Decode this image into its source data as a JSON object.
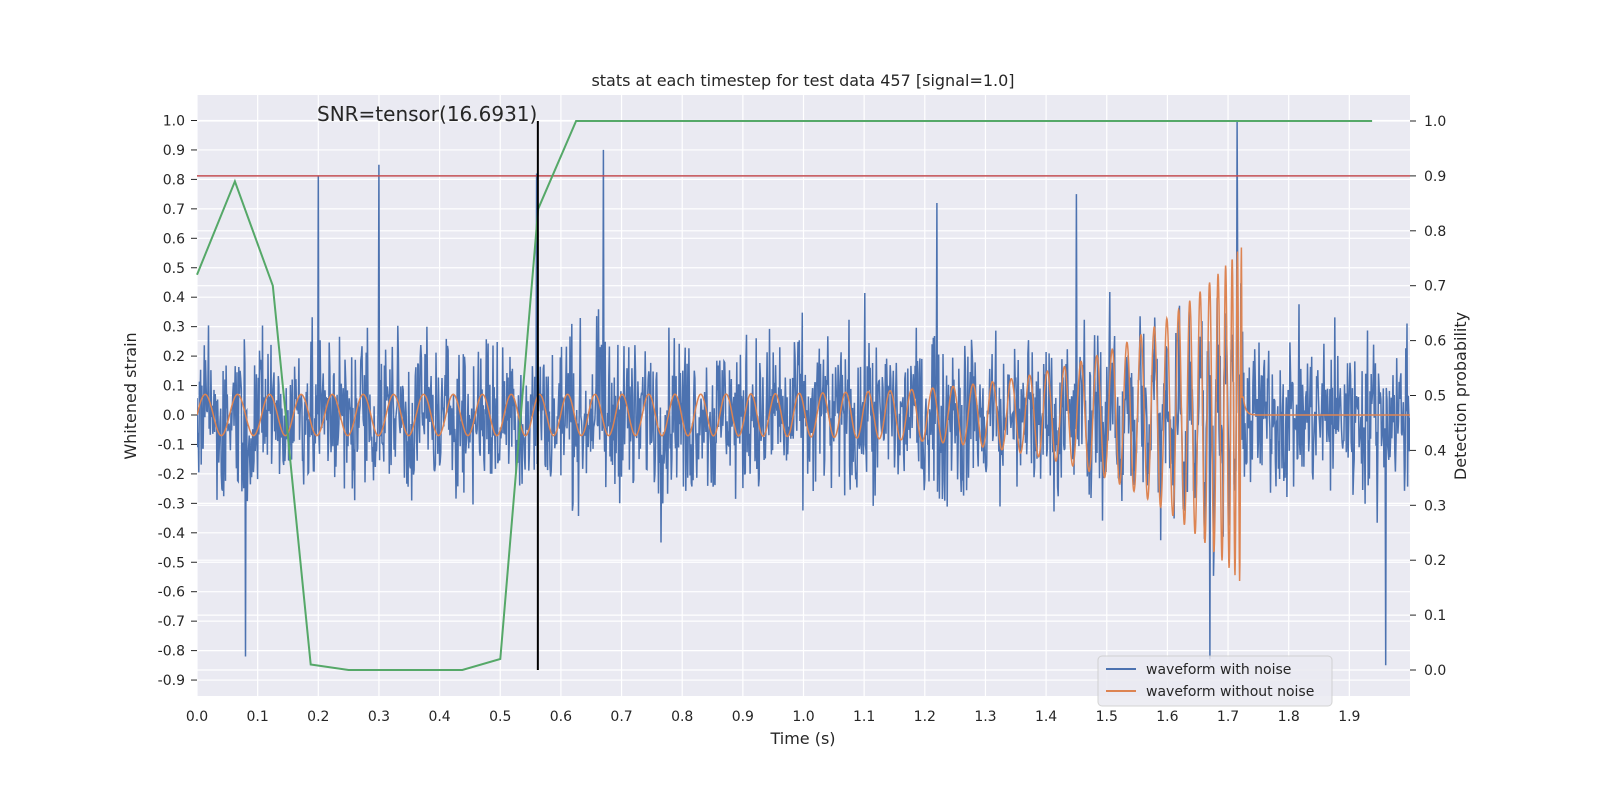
{
  "chart_data": {
    "type": "line",
    "title": "stats at each timestep for test data 457 [signal=1.0]",
    "xlabel": "Time (s)",
    "ylabel": "Whitened strain",
    "y2label": "Detection probability",
    "xlim": [
      0.0,
      2.0
    ],
    "ylim": [
      -0.95,
      1.09
    ],
    "y2lim": [
      -0.045,
      1.045
    ],
    "xticks": [
      "0.0",
      "0.1",
      "0.2",
      "0.3",
      "0.4",
      "0.5",
      "0.6",
      "0.7",
      "0.8",
      "0.9",
      "1.0",
      "1.1",
      "1.2",
      "1.3",
      "1.4",
      "1.5",
      "1.6",
      "1.7",
      "1.8",
      "1.9"
    ],
    "yticks": [
      "1.0",
      "0.9",
      "0.8",
      "0.7",
      "0.6",
      "0.5",
      "0.4",
      "0.3",
      "0.2",
      "0.1",
      "0.0",
      "-0.1",
      "-0.2",
      "-0.3",
      "-0.4",
      "-0.5",
      "-0.6",
      "-0.7",
      "-0.8",
      "-0.9"
    ],
    "y2ticks": [
      "1.0",
      "0.9",
      "0.8",
      "0.7",
      "0.6",
      "0.5",
      "0.4",
      "0.3",
      "0.2",
      "0.1",
      "0.0"
    ],
    "grid": true,
    "legend_position": "lower-right",
    "annotation": {
      "text": "SNR=tensor(16.6931)",
      "x": 0.2,
      "y": 1.0
    },
    "threshold_line": {
      "y2": 0.9,
      "color": "#c44e52"
    },
    "marker_line": {
      "x": 0.562,
      "y2_from": 0.0,
      "y2_to": 1.0,
      "color": "#000000"
    },
    "series": [
      {
        "name": "waveform with noise",
        "color": "#4c72b0",
        "description_only": false,
        "noise_amplitude": 0.45,
        "spikes": [
          [
            0.08,
            -0.82
          ],
          [
            0.2,
            0.81
          ],
          [
            0.3,
            0.85
          ],
          [
            0.56,
            0.82
          ],
          [
            0.67,
            0.9
          ],
          [
            1.22,
            0.72
          ],
          [
            1.45,
            0.75
          ],
          [
            1.67,
            -0.83
          ],
          [
            1.715,
            1.0
          ],
          [
            1.96,
            -0.85
          ]
        ]
      },
      {
        "name": "waveform without noise",
        "color": "#dd8452",
        "chirp": {
          "base_amplitude": 0.07,
          "peak_amplitude": 0.58,
          "merger_time": 1.725,
          "start_freq_hz": 22,
          "end_freq_hz": 200
        }
      },
      {
        "name": "",
        "color": "#55a868",
        "axis": "right",
        "x": [
          0.0,
          0.0625,
          0.125,
          0.1875,
          0.25,
          0.4375,
          0.5,
          0.5625,
          0.625,
          0.6875,
          1.9375
        ],
        "y": [
          0.72,
          0.89,
          0.7,
          0.01,
          0.0,
          0.0,
          0.02,
          0.84,
          1.0,
          1.0,
          1.0
        ]
      }
    ]
  }
}
